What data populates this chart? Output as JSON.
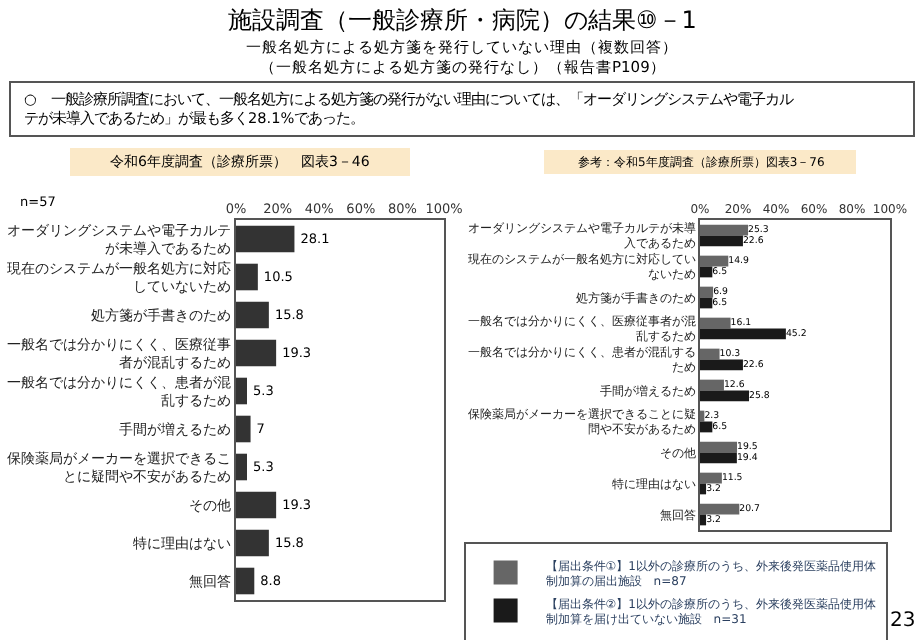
{
  "chart_data": [
    {
      "type": "bar",
      "orientation": "horizontal",
      "title": "施設調査（一般診療所・病院）の結果⑩－1",
      "subtitle": "一般名処方による処方箋を発行していない理由（複数回答）",
      "annotations": [
        "（一般名処方による処方箋の発行なし）（報告書P109）",
        "○　一般診療所調査において、一般名処方による処方箋の発行がない理由については、「オーダリングシステムや電子カルテが未導入であるため」が最も多く28.1%であった。",
        "令和6年度調査（診療所票）　図表3－46",
        "n=57"
      ],
      "categories": [
        "オーダリングシステムや電子カルテが未導入であるため",
        "現在のシステムが一般名処方に対応していないため",
        "処方箋が手書きのため",
        "一般名では分かりにくく、医療従事者が混乱するため",
        "一般名では分かりにくく、患者が混乱するため",
        "手間が増えるため",
        "保険薬局がメーカーを選択できることに疑問や不安があるため",
        "その他",
        "特に理由はない",
        "無回答"
      ],
      "series": [
        {
          "color": "#333333",
          "values": [
            28.1,
            10.5,
            15.8,
            19.3,
            5.3,
            7.0,
            5.3,
            19.3,
            15.8,
            8.8
          ]
        }
      ],
      "xlim": [
        0,
        100
      ],
      "xticks": [
        {
          "value": 0,
          "label": "0%"
        },
        {
          "value": 20,
          "label": "20%"
        },
        {
          "value": 40,
          "label": "40%"
        },
        {
          "value": 60,
          "label": "60%"
        },
        {
          "value": 80,
          "label": "80%"
        },
        {
          "value": 100,
          "label": "100%"
        }
      ],
      "data_labels": true,
      "grid": false,
      "legend": false
    },
    {
      "type": "bar",
      "orientation": "horizontal",
      "title": "参考：令和5年度調査（診療所票）図表3－76",
      "annotations": [
        "23"
      ],
      "categories": [
        "オーダリングシステムや電子カルテが未導入であるため",
        "現在のシステムが一般名処方に対応していないため",
        "処方箋が手書きのため",
        "一般名では分かりにくく、医療従事者が混乱するため",
        "一般名では分かりにくく、患者が混乱するため",
        "手間が増えるため",
        "保険薬局がメーカーを選択できることに疑問や不安があるため",
        "その他",
        "特に理由はない",
        "無回答"
      ],
      "series": [
        {
          "name": "【届出条件①】1以外の診療所のうち、外来後発医薬品使用体制加算の届出施設　n=87",
          "color": "#666666",
          "values": [
            25.3,
            14.9,
            6.9,
            16.1,
            10.3,
            12.6,
            2.3,
            19.5,
            11.5,
            20.7
          ]
        },
        {
          "name": "【届出条件②】1以外の診療所のうち、外来後発医薬品使用体制加算を届け出ていない施設　n=31",
          "color": "#1a1a1a",
          "values": [
            22.6,
            6.5,
            6.5,
            45.2,
            22.6,
            25.8,
            6.5,
            19.4,
            3.2,
            3.2
          ]
        }
      ],
      "xlim": [
        0,
        100
      ],
      "xticks": [
        {
          "value": 0,
          "label": "0%"
        },
        {
          "value": 20,
          "label": "20%"
        },
        {
          "value": 40,
          "label": "40%"
        },
        {
          "value": 60,
          "label": "60%"
        },
        {
          "value": 80,
          "label": "80%"
        },
        {
          "value": 100,
          "label": "100%"
        }
      ],
      "data_labels": true,
      "grid": false,
      "legend": "bottom"
    }
  ]
}
